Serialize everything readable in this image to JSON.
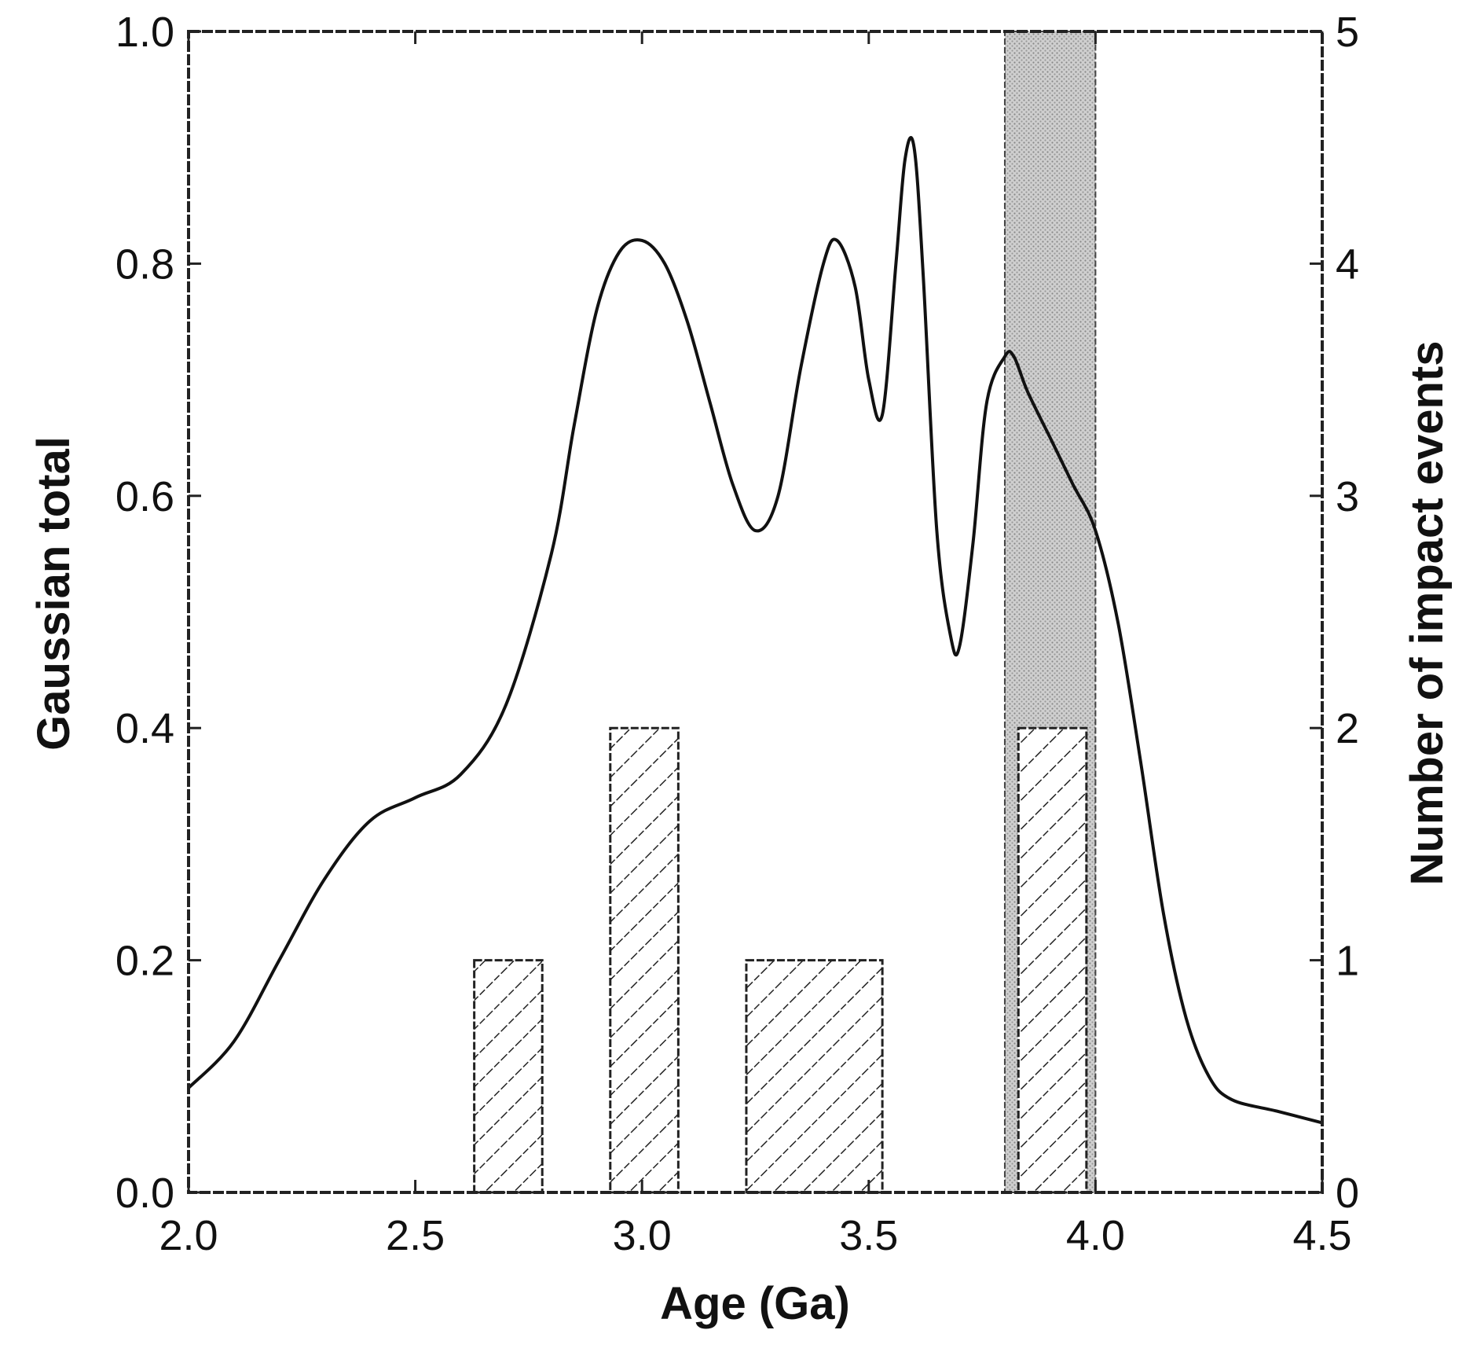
{
  "chart_data": {
    "type": "bar+line",
    "title": "",
    "xlabel": "Age (Ga)",
    "ylabel_left": "Gaussian total",
    "ylabel_right": "Number of impact events",
    "xlim": [
      2.0,
      4.5
    ],
    "ylim_left": [
      0.0,
      1.0
    ],
    "ylim_right": [
      0,
      5
    ],
    "x_ticks": [
      "2.0",
      "2.5",
      "3.0",
      "3.5",
      "4.0",
      "4.5"
    ],
    "y_ticks_left": [
      "0.0",
      "0.2",
      "0.4",
      "0.6",
      "0.8",
      "1.0"
    ],
    "y_ticks_right": [
      "0",
      "1",
      "2",
      "3",
      "4",
      "5"
    ],
    "shaded_band": {
      "x_start": 3.8,
      "x_end": 4.0
    },
    "bars": [
      {
        "x_start": 2.63,
        "x_end": 2.78,
        "count": 1
      },
      {
        "x_start": 2.93,
        "x_end": 3.08,
        "count": 2
      },
      {
        "x_start": 3.23,
        "x_end": 3.53,
        "count": 1
      },
      {
        "x_start": 3.83,
        "x_end": 3.98,
        "count": 2
      }
    ],
    "gaussian_curve": {
      "x": [
        2.0,
        2.1,
        2.2,
        2.3,
        2.4,
        2.5,
        2.6,
        2.7,
        2.8,
        2.85,
        2.9,
        2.95,
        3.0,
        3.05,
        3.1,
        3.15,
        3.2,
        3.25,
        3.3,
        3.35,
        3.4,
        3.43,
        3.47,
        3.5,
        3.53,
        3.56,
        3.58,
        3.6,
        3.62,
        3.65,
        3.68,
        3.7,
        3.73,
        3.76,
        3.8,
        3.82,
        3.85,
        3.9,
        3.95,
        4.0,
        4.05,
        4.1,
        4.15,
        4.2,
        4.25,
        4.3,
        4.4,
        4.5
      ],
      "y": [
        0.09,
        0.13,
        0.2,
        0.27,
        0.32,
        0.34,
        0.36,
        0.42,
        0.55,
        0.66,
        0.76,
        0.81,
        0.82,
        0.8,
        0.75,
        0.68,
        0.61,
        0.57,
        0.6,
        0.71,
        0.8,
        0.82,
        0.78,
        0.7,
        0.67,
        0.8,
        0.89,
        0.9,
        0.79,
        0.57,
        0.48,
        0.47,
        0.56,
        0.68,
        0.72,
        0.72,
        0.69,
        0.65,
        0.61,
        0.57,
        0.49,
        0.37,
        0.24,
        0.15,
        0.1,
        0.08,
        0.07,
        0.06
      ]
    }
  }
}
